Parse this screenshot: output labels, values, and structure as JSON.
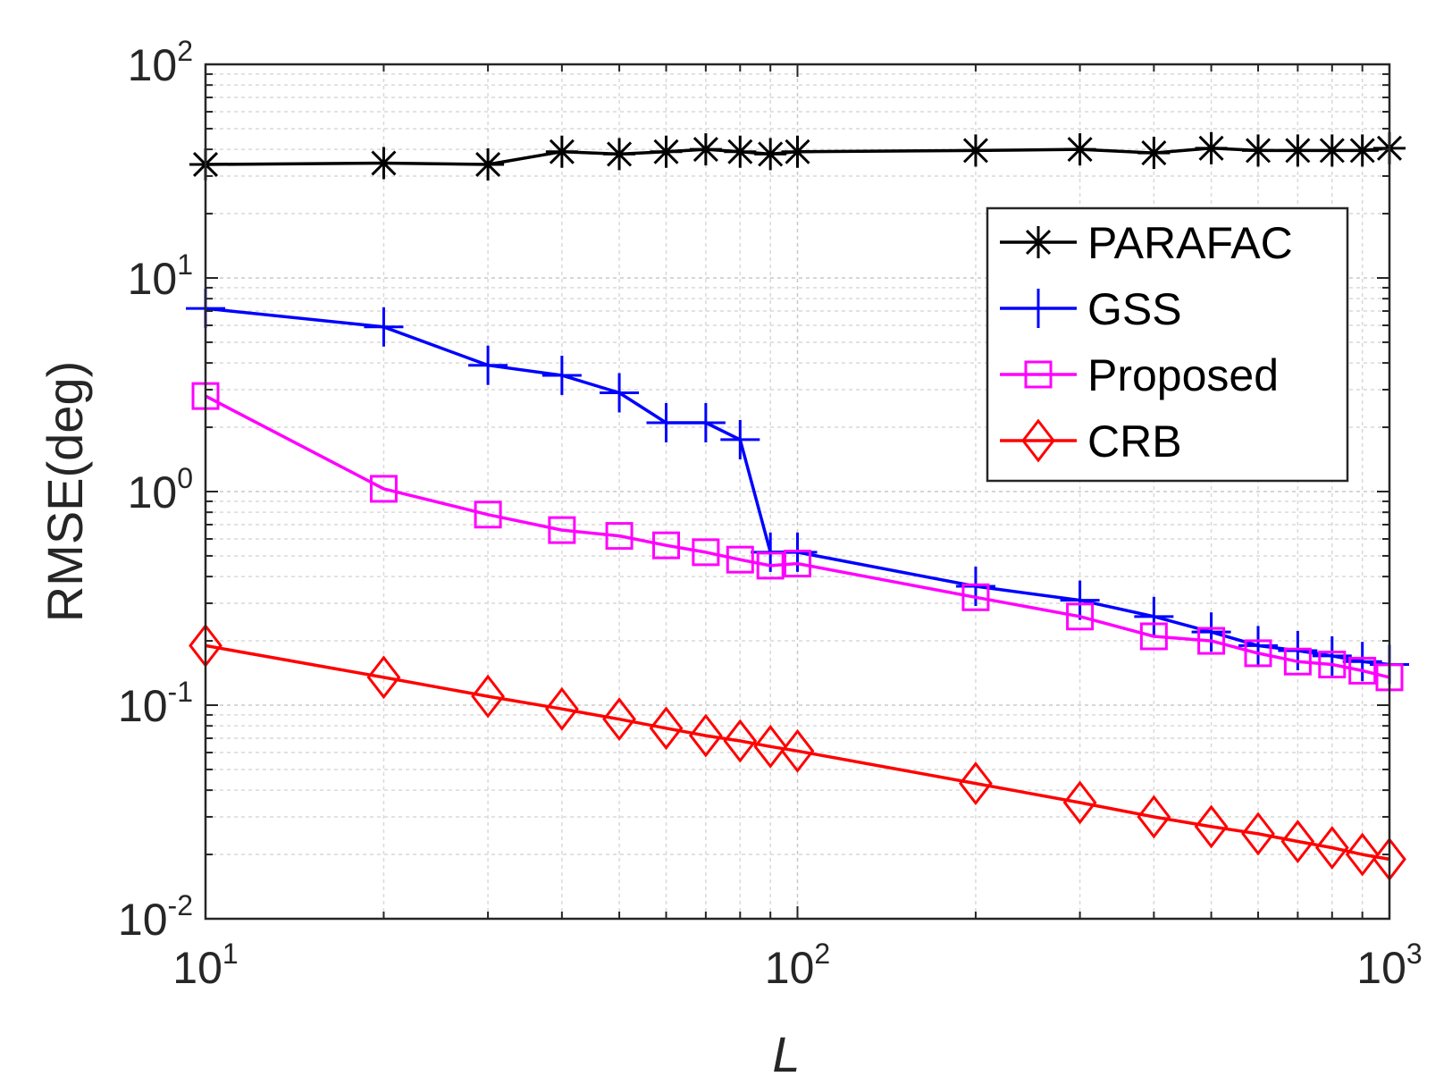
{
  "chart_data": {
    "type": "line",
    "title": "",
    "xlabel": "L",
    "ylabel": "RMSE(deg)",
    "xscale": "log",
    "yscale": "log",
    "xlim": [
      10,
      1000
    ],
    "ylim": [
      0.01,
      100
    ],
    "grid": true,
    "legend_position": "upper-right",
    "x_ticks": [
      {
        "value": 10,
        "base": "10",
        "exp": "1"
      },
      {
        "value": 100,
        "base": "10",
        "exp": "2"
      },
      {
        "value": 1000,
        "base": "10",
        "exp": "3"
      }
    ],
    "y_ticks": [
      {
        "value": 0.01,
        "base": "10",
        "exp": "-2"
      },
      {
        "value": 0.1,
        "base": "10",
        "exp": "-1"
      },
      {
        "value": 1,
        "base": "10",
        "exp": "0"
      },
      {
        "value": 10,
        "base": "10",
        "exp": "1"
      },
      {
        "value": 100,
        "base": "10",
        "exp": "2"
      }
    ],
    "x": [
      10,
      20,
      30,
      40,
      50,
      60,
      70,
      80,
      90,
      100,
      200,
      300,
      400,
      500,
      600,
      700,
      800,
      900,
      1000
    ],
    "series": [
      {
        "name": "PARAFAC",
        "color": "#000000",
        "marker": "asterisk",
        "values": [
          34,
          34.5,
          34,
          39,
          38,
          39,
          40,
          39,
          38,
          39,
          39.5,
          40,
          38.5,
          40.5,
          39.5,
          39.5,
          39.5,
          39.5,
          40.5
        ]
      },
      {
        "name": "GSS",
        "color": "#0000ff",
        "marker": "plus",
        "values": [
          7.2,
          5.9,
          3.9,
          3.5,
          2.9,
          2.1,
          2.1,
          1.75,
          0.52,
          0.52,
          0.36,
          0.31,
          0.26,
          0.22,
          0.19,
          0.18,
          0.17,
          0.16,
          0.155
        ]
      },
      {
        "name": "Proposed",
        "color": "#ff00ff",
        "marker": "square",
        "values": [
          2.8,
          1.03,
          0.78,
          0.66,
          0.62,
          0.56,
          0.52,
          0.48,
          0.45,
          0.46,
          0.32,
          0.26,
          0.21,
          0.2,
          0.175,
          0.16,
          0.155,
          0.145,
          0.135
        ]
      },
      {
        "name": "CRB",
        "color": "#ff0000",
        "marker": "diamond",
        "values": [
          0.19,
          0.135,
          0.11,
          0.096,
          0.086,
          0.078,
          0.072,
          0.068,
          0.064,
          0.061,
          0.043,
          0.035,
          0.03,
          0.027,
          0.025,
          0.023,
          0.0215,
          0.02,
          0.019
        ]
      }
    ]
  }
}
